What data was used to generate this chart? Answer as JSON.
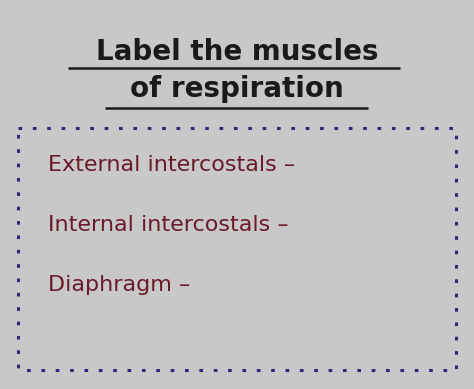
{
  "title_line1": "Label the muscles",
  "title_line2": "of respiration",
  "title_color": "#1a1a1a",
  "title_fontsize": 20,
  "bg_color": "#c8c8c8",
  "box_border_color": "#2b2b7a",
  "items": [
    "External intercostals –",
    "Internal intercostals –",
    "Diaphragm –"
  ],
  "item_color": "#6b1a2a",
  "item_fontsize": 16,
  "figsize": [
    4.74,
    3.89
  ],
  "dpi": 100,
  "underline_color": "#1a1a1a"
}
